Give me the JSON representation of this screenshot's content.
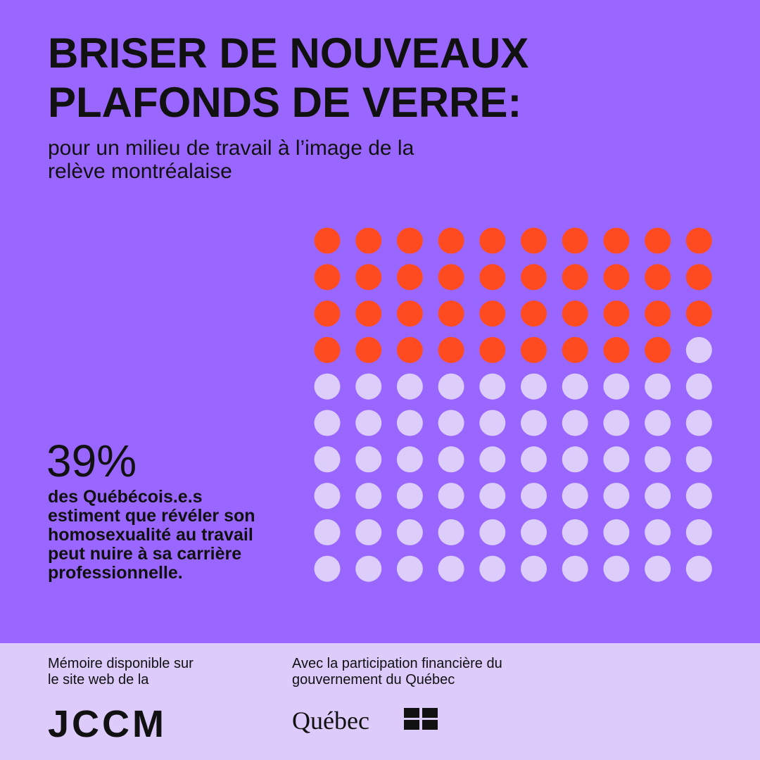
{
  "title_lines": [
    "BRISER DE NOUVEAUX",
    "PLAFONDS DE VERRE:"
  ],
  "subtitle_lines": [
    "pour un milieu de travail à  l’image de la",
    "relève montréalaise"
  ],
  "chart_data": {
    "type": "waffle",
    "values": [
      39
    ],
    "value_labels": [
      "39%"
    ],
    "color": "#ff4b1f",
    "empty_color": "#dccdfa",
    "caption_lines": [
      "des Québécois.e.s",
      "estiment que révéler son",
      "homosexualité au travail",
      "peut nuire à sa carrière",
      "professionnelle."
    ]
  },
  "footer": {
    "left_lines": [
      "Mémoire disponible sur",
      "le site web de la"
    ],
    "left_logo": "JCCM",
    "right_lines": [
      "Avec la participation financière du",
      "gouvernement du Québec"
    ],
    "right_logo": "Québec"
  }
}
